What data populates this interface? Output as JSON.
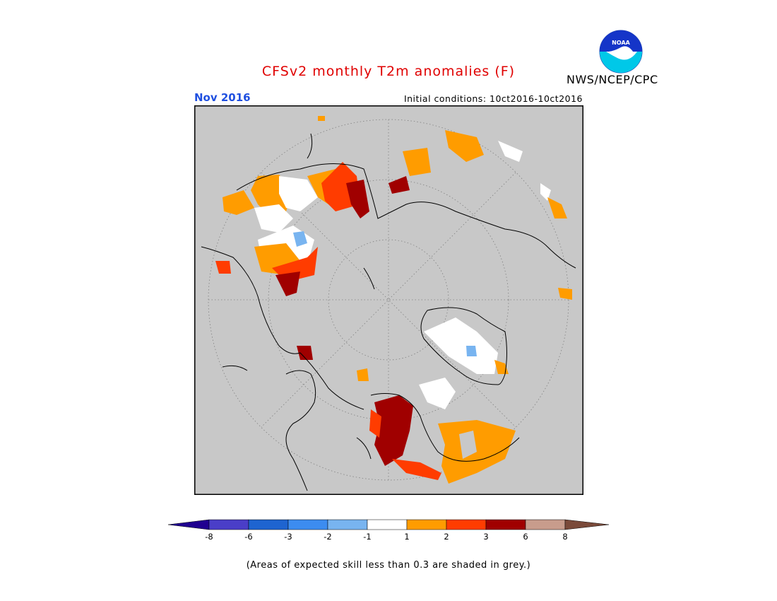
{
  "title": "CFSv2 monthly T2m anomalies (F)",
  "forecast_month": "Nov 2016",
  "initial_conditions": "Initial conditions: 10ct2016-10ct2016",
  "agency": "NWS/NCEP/CPC",
  "logo_text": "NOAA",
  "note": "(Areas of expected skill less than 0.3 are shaded in grey.)",
  "map": {
    "projection": "north-polar-stereographic",
    "background_color": "#c8c8c8",
    "grid": "dotted",
    "coastline_color": "#000000"
  },
  "legend": {
    "tick_labels": [
      "-8",
      "-6",
      "-3",
      "-2",
      "-1",
      "1",
      "2",
      "3",
      "6",
      "8"
    ],
    "colors": [
      "#200090",
      "#4a3ec8",
      "#1e64d0",
      "#3c8cf0",
      "#78b4f0",
      "#ffffff",
      "#ff9c00",
      "#ff3c00",
      "#a00000",
      "#c89c8c",
      "#7a4a3a"
    ]
  }
}
